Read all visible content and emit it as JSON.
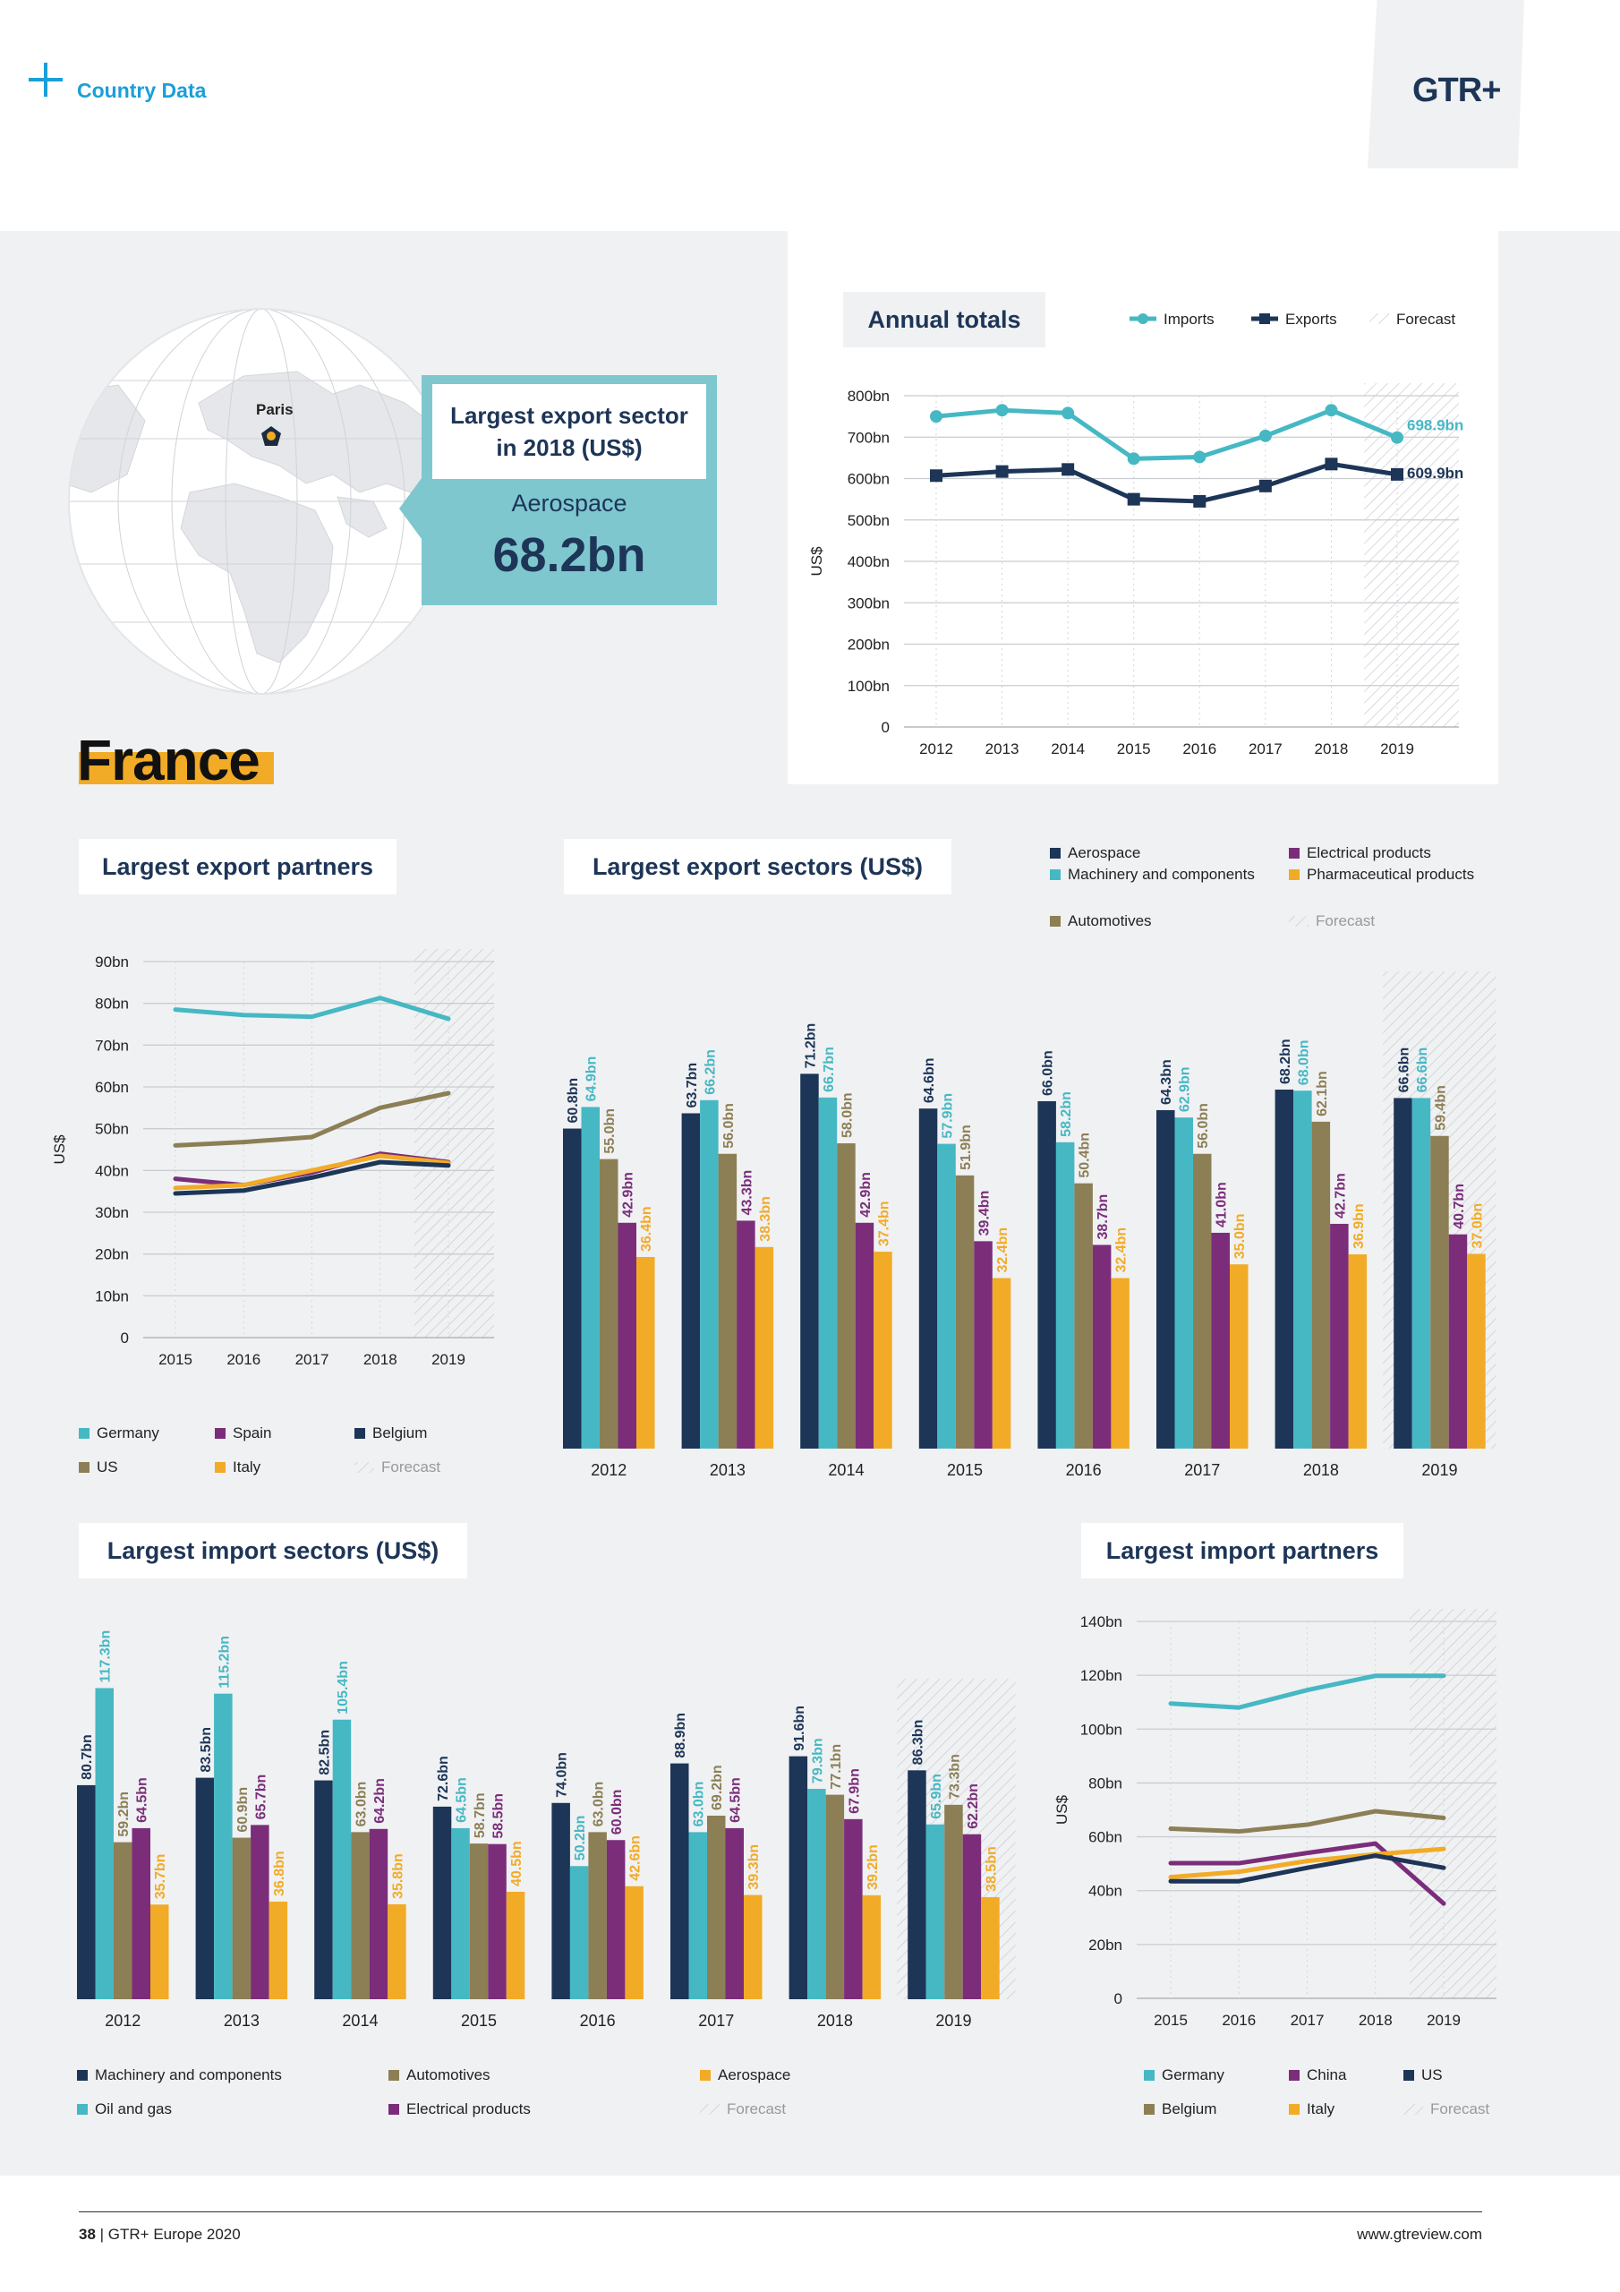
{
  "header": {
    "section": "Country Data",
    "logo": "GTR+"
  },
  "country": "France",
  "map": {
    "city": "Paris"
  },
  "callout": {
    "title": "Largest export sector in 2018 (US$)",
    "sector": "Aerospace",
    "value": "68.2bn"
  },
  "colors": {
    "navy": "#1d3557",
    "teal": "#46b8c4",
    "olive": "#8c7f55",
    "purple": "#7b2d7a",
    "orange": "#f2ab26",
    "accent": "#1a9fd8",
    "callout": "#7ec7cf"
  },
  "titles": {
    "annual": "Annual totals",
    "export_partners": "Largest export partners",
    "export_sectors": "Largest export sectors (US$)",
    "import_sectors": "Largest import sectors (US$)",
    "import_partners": "Largest import partners"
  },
  "footer": {
    "page": "38",
    "pub": "GTR+ Europe 2020",
    "url": "www.gtreview.com"
  },
  "chart_data": [
    {
      "id": "annual",
      "type": "line",
      "x": [
        "2012",
        "2013",
        "2014",
        "2015",
        "2016",
        "2017",
        "2018",
        "2019"
      ],
      "series": [
        {
          "name": "Imports",
          "color": "#46b8c4",
          "values": [
            750,
            765,
            758,
            648,
            652,
            703,
            765,
            699
          ]
        },
        {
          "name": "Exports",
          "color": "#1d3557",
          "values": [
            607,
            617,
            622,
            550,
            545,
            582,
            635,
            610
          ]
        }
      ],
      "labels": [
        "698.9bn",
        "609.9bn"
      ],
      "forecast_label": "Forecast",
      "ylabel": "US$",
      "yticks": [
        "0",
        "100bn",
        "200bn",
        "300bn",
        "400bn",
        "500bn",
        "600bn",
        "700bn",
        "800bn"
      ],
      "ylim": [
        0,
        800
      ],
      "grid": true,
      "forecast_from": "2019"
    },
    {
      "id": "export_partners",
      "type": "line",
      "x": [
        "2015",
        "2016",
        "2017",
        "2018",
        "2019"
      ],
      "series": [
        {
          "name": "Germany",
          "color": "#46b8c4",
          "values": [
            78.5,
            77.2,
            76.8,
            81.3,
            76.3
          ]
        },
        {
          "name": "US",
          "color": "#8c7f55",
          "values": [
            46.0,
            46.8,
            48.0,
            55.0,
            58.5
          ]
        },
        {
          "name": "Spain",
          "color": "#7b2d7a",
          "values": [
            38.0,
            36.5,
            39.5,
            44.0,
            42.0
          ]
        },
        {
          "name": "Italy",
          "color": "#f2ab26",
          "values": [
            35.8,
            36.5,
            40.0,
            43.5,
            41.8
          ]
        },
        {
          "name": "Belgium",
          "color": "#1d3557",
          "values": [
            34.5,
            35.2,
            38.3,
            42.0,
            41.2
          ]
        }
      ],
      "forecast_label": "Forecast",
      "ylabel": "US$",
      "yticks": [
        "0",
        "10bn",
        "20bn",
        "30bn",
        "40bn",
        "50bn",
        "60bn",
        "70bn",
        "80bn",
        "90bn"
      ],
      "ylim": [
        0,
        90
      ],
      "grid": true,
      "legend": "bottom",
      "forecast_from": "2019"
    },
    {
      "id": "export_sectors",
      "type": "bar",
      "categories": [
        "2012",
        "2013",
        "2014",
        "2015",
        "2016",
        "2017",
        "2018",
        "2019"
      ],
      "series": [
        {
          "name": "Aerospace",
          "color": "#1d3557",
          "values": [
            60.8,
            63.7,
            71.2,
            64.6,
            66.0,
            64.3,
            68.2,
            66.6
          ],
          "labels": [
            "60.8bn",
            "63.7bn",
            "71.2bn",
            "64.6bn",
            "66.0bn",
            "64.3bn",
            "68.2bn",
            "66.6bn"
          ]
        },
        {
          "name": "Machinery and components",
          "color": "#46b8c4",
          "values": [
            64.9,
            66.2,
            66.7,
            57.9,
            58.2,
            62.9,
            68.0,
            66.6
          ],
          "labels": [
            "64.9bn",
            "66.2bn",
            "66.7bn",
            "57.9bn",
            "58.2bn",
            "62.9bn",
            "68.0bn",
            "66.6bn"
          ]
        },
        {
          "name": "Automotives",
          "color": "#8c7f55",
          "values": [
            55.0,
            56.0,
            58.0,
            51.9,
            50.4,
            56.0,
            62.1,
            59.4
          ],
          "labels": [
            "55.0bn",
            "56.0bn",
            "58.0bn",
            "51.9bn",
            "50.4bn",
            "56.0bn",
            "62.1bn",
            "59.4bn"
          ]
        },
        {
          "name": "Electrical products",
          "color": "#7b2d7a",
          "values": [
            42.9,
            43.3,
            42.9,
            39.4,
            38.7,
            41.0,
            42.7,
            40.7
          ],
          "labels": [
            "42.9bn",
            "43.3bn",
            "42.9bn",
            "39.4bn",
            "38.7bn",
            "41.0bn",
            "42.7bn",
            "40.7bn"
          ]
        },
        {
          "name": "Pharmaceutical products",
          "color": "#f2ab26",
          "values": [
            36.4,
            38.3,
            37.4,
            32.4,
            32.4,
            35.0,
            36.9,
            37.0
          ],
          "labels": [
            "36.4bn",
            "38.3bn",
            "37.4bn",
            "32.4bn",
            "32.4bn",
            "35.0bn",
            "36.9bn",
            "37.0bn"
          ]
        }
      ],
      "forecast_label": "Forecast",
      "legend": "top-right",
      "forecast_from": "2019"
    },
    {
      "id": "import_sectors",
      "type": "bar",
      "categories": [
        "2012",
        "2013",
        "2014",
        "2015",
        "2016",
        "2017",
        "2018",
        "2019"
      ],
      "series": [
        {
          "name": "Machinery and components",
          "color": "#1d3557",
          "values": [
            80.7,
            83.5,
            82.5,
            72.6,
            74.0,
            88.9,
            91.6,
            86.3
          ],
          "labels": [
            "80.7bn",
            "83.5bn",
            "82.5bn",
            "72.6bn",
            "74.0bn",
            "88.9bn",
            "91.6bn",
            "86.3bn"
          ]
        },
        {
          "name": "Oil and gas",
          "color": "#46b8c4",
          "values": [
            117.3,
            115.2,
            105.4,
            64.5,
            50.2,
            63.0,
            79.3,
            65.9
          ],
          "labels": [
            "117.3bn",
            "115.2bn",
            "105.4bn",
            "64.5bn",
            "50.2bn",
            "63.0bn",
            "79.3bn",
            "65.9bn"
          ]
        },
        {
          "name": "Automotives",
          "color": "#8c7f55",
          "values": [
            59.2,
            60.9,
            63.0,
            58.7,
            63.0,
            69.2,
            77.1,
            73.3
          ],
          "labels": [
            "59.2bn",
            "60.9bn",
            "63.0bn",
            "58.7bn",
            "63.0bn",
            "69.2bn",
            "77.1bn",
            "73.3bn"
          ]
        },
        {
          "name": "Electrical products",
          "color": "#7b2d7a",
          "values": [
            64.5,
            65.7,
            64.2,
            58.5,
            60.0,
            64.5,
            67.9,
            62.2
          ],
          "labels": [
            "64.5bn",
            "65.7bn",
            "64.2bn",
            "58.5bn",
            "60.0bn",
            "64.5bn",
            "67.9bn",
            "62.2bn"
          ]
        },
        {
          "name": "Aerospace",
          "color": "#f2ab26",
          "values": [
            35.7,
            36.8,
            35.8,
            40.5,
            42.6,
            39.3,
            39.2,
            38.5
          ],
          "labels": [
            "35.7bn",
            "36.8bn",
            "35.8bn",
            "40.5bn",
            "42.6bn",
            "39.3bn",
            "39.2bn",
            "38.5bn"
          ]
        }
      ],
      "forecast_label": "Forecast",
      "legend": "bottom",
      "forecast_from": "2019"
    },
    {
      "id": "import_partners",
      "type": "line",
      "x": [
        "2015",
        "2016",
        "2017",
        "2018",
        "2019"
      ],
      "series": [
        {
          "name": "Germany",
          "color": "#46b8c4",
          "values": [
            109.5,
            108.0,
            114.5,
            119.8,
            119.8
          ]
        },
        {
          "name": "Belgium",
          "color": "#8c7f55",
          "values": [
            63.0,
            62.0,
            64.5,
            69.5,
            67.0
          ]
        },
        {
          "name": "China",
          "color": "#7b2d7a",
          "values": [
            50.2,
            50.2,
            54.0,
            57.5,
            35.2
          ]
        },
        {
          "name": "Italy",
          "color": "#f2ab26",
          "values": [
            45.0,
            47.0,
            51.0,
            53.5,
            55.5
          ]
        },
        {
          "name": "US",
          "color": "#1d3557",
          "values": [
            43.5,
            43.5,
            48.5,
            53.0,
            48.5
          ]
        }
      ],
      "forecast_label": "Forecast",
      "ylabel": "US$",
      "yticks": [
        "0",
        "20bn",
        "40bn",
        "60bn",
        "80bn",
        "100bn",
        "120bn",
        "140bn"
      ],
      "ylim": [
        0,
        140
      ],
      "grid": true,
      "legend": "bottom",
      "forecast_from": "2019"
    }
  ]
}
